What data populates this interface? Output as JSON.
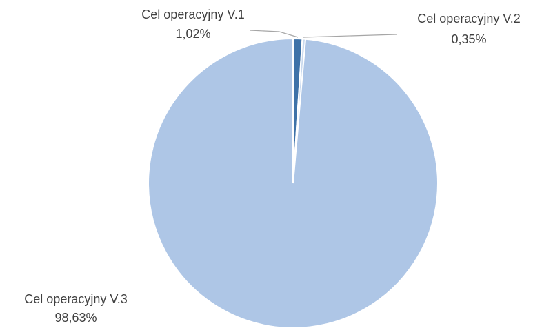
{
  "chart_data": {
    "type": "pie",
    "categories": [
      "Cel operacyjny V.1",
      "Cel operacyjny V.2",
      "Cel operacyjny V.3"
    ],
    "values": [
      1.02,
      0.35,
      98.63
    ],
    "value_labels": [
      "1,02%",
      "0,35%",
      "98,63%"
    ],
    "colors": [
      "#3e72a8",
      "#c9d9ee",
      "#aec6e6"
    ]
  }
}
